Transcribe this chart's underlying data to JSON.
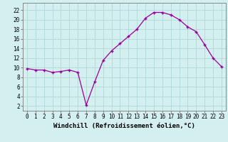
{
  "x": [
    0,
    1,
    2,
    3,
    4,
    5,
    6,
    7,
    8,
    9,
    10,
    11,
    12,
    13,
    14,
    15,
    16,
    17,
    18,
    19,
    20,
    21,
    22,
    23
  ],
  "y": [
    9.8,
    9.5,
    9.5,
    9.0,
    9.2,
    9.5,
    9.0,
    2.2,
    7.0,
    11.5,
    13.5,
    15.0,
    16.5,
    18.0,
    20.3,
    21.5,
    21.5,
    21.0,
    20.0,
    18.5,
    17.5,
    14.8,
    12.0,
    10.2
  ],
  "line_color": "#990099",
  "marker": "+",
  "bg_color": "#d4efef",
  "grid_color": "#b0d8d8",
  "xlabel": "Windchill (Refroidissement éolien,°C)",
  "xlabel_fontsize": 6.5,
  "ytick_labels": [
    "2",
    "4",
    "6",
    "8",
    "10",
    "12",
    "14",
    "16",
    "18",
    "20",
    "22"
  ],
  "ytick_values": [
    2,
    4,
    6,
    8,
    10,
    12,
    14,
    16,
    18,
    20,
    22
  ],
  "ylim": [
    1.0,
    23.5
  ],
  "xlim": [
    -0.5,
    23.5
  ],
  "tick_fontsize": 5.5
}
